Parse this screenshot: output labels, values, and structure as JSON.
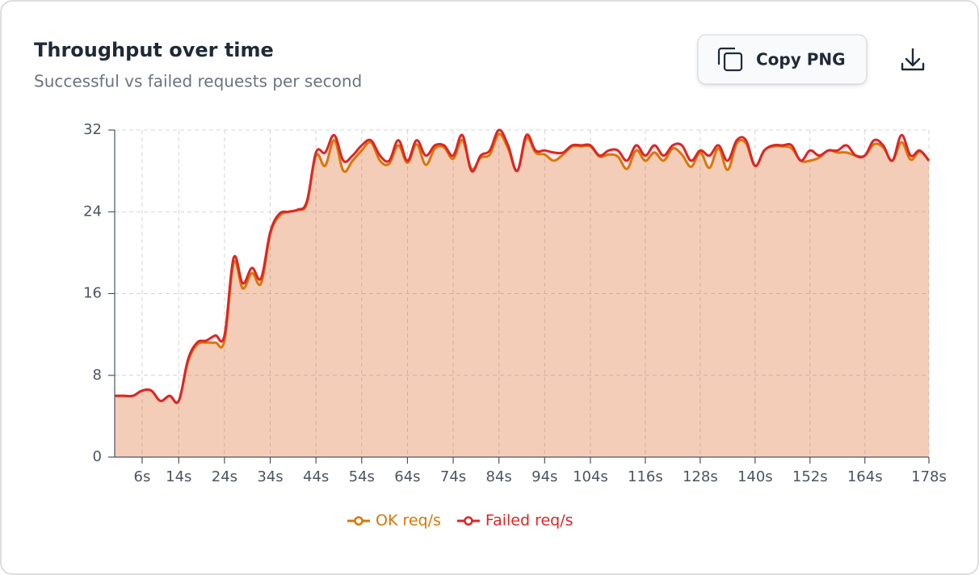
{
  "header": {
    "title": "Throughput over time",
    "subtitle": "Successful vs failed requests per second"
  },
  "toolbar": {
    "copy_label": "Copy PNG"
  },
  "chart_data": {
    "type": "line",
    "x": [
      0,
      2,
      4,
      6,
      8,
      10,
      12,
      14,
      16,
      18,
      20,
      22,
      24,
      26,
      28,
      30,
      32,
      34,
      36,
      38,
      40,
      42,
      44,
      46,
      48,
      50,
      52,
      54,
      56,
      58,
      60,
      62,
      64,
      66,
      68,
      70,
      72,
      74,
      76,
      78,
      80,
      82,
      84,
      86,
      88,
      90,
      92,
      94,
      96,
      98,
      100,
      102,
      104,
      106,
      108,
      110,
      112,
      114,
      116,
      118,
      120,
      122,
      124,
      126,
      128,
      130,
      132,
      134,
      136,
      138,
      140,
      142,
      144,
      146,
      148,
      150,
      152,
      154,
      156,
      158,
      160,
      162,
      164,
      166,
      168,
      170,
      172,
      174,
      176,
      178
    ],
    "series": [
      {
        "name": "OK req/s",
        "color": "#d97706",
        "values": [
          6,
          6,
          6,
          6.5,
          6.5,
          5.5,
          6,
          5.5,
          9.3,
          11,
          11.2,
          11.2,
          11.4,
          19,
          16.5,
          18,
          17,
          21.8,
          23.6,
          24,
          24.2,
          24.8,
          29.5,
          28.5,
          31,
          28,
          29,
          30,
          30.8,
          29,
          28.7,
          30.5,
          28.8,
          30.6,
          28.6,
          30.2,
          30.3,
          29.2,
          31,
          28.2,
          29.3,
          29.6,
          31.6,
          30.2,
          28,
          31.2,
          29.8,
          29.6,
          29,
          29.6,
          30.4,
          30.4,
          30.4,
          29.4,
          29.6,
          29.4,
          28.2,
          30,
          29,
          29.8,
          29,
          30.2,
          29.6,
          28.4,
          29.8,
          28.3,
          30.2,
          28.1,
          30.7,
          30.7,
          28.5,
          30,
          30.4,
          30.4,
          30.2,
          29,
          29,
          29.3,
          30,
          29.8,
          29.8,
          29.5,
          29.5,
          30.6,
          30.3,
          29,
          30.8,
          29.1,
          29.9,
          29
        ]
      },
      {
        "name": "Failed req/s",
        "color": "#dc2626",
        "values": [
          6,
          6,
          6,
          6.5,
          6.5,
          5.5,
          6,
          5.5,
          9.5,
          11.2,
          11.4,
          11.9,
          11.9,
          19.5,
          17,
          18.5,
          17.5,
          22,
          23.8,
          24,
          24.2,
          25,
          29.8,
          29.8,
          31.5,
          29,
          29.5,
          30.5,
          31,
          29.5,
          29,
          31,
          29,
          31,
          29.5,
          30.5,
          30.5,
          29.5,
          31.5,
          28,
          29.5,
          30,
          32,
          30.5,
          28,
          31.5,
          30,
          30,
          29.8,
          29.8,
          30.5,
          30.5,
          30.5,
          29.5,
          30,
          30,
          29,
          30.5,
          29.5,
          30.5,
          29.5,
          30.5,
          30.5,
          29,
          30,
          29.5,
          30.5,
          29,
          31,
          31,
          28.5,
          30,
          30.5,
          30.5,
          30.5,
          29,
          30,
          29.5,
          30,
          30,
          30.5,
          29.5,
          29.5,
          31,
          30.5,
          29,
          31.5,
          29.5,
          30,
          29
        ]
      }
    ],
    "xlim": [
      0,
      178
    ],
    "xticks": [
      {
        "value": 6,
        "label": "6s"
      },
      {
        "value": 14,
        "label": "14s"
      },
      {
        "value": 24,
        "label": "24s"
      },
      {
        "value": 34,
        "label": "34s"
      },
      {
        "value": 44,
        "label": "44s"
      },
      {
        "value": 54,
        "label": "54s"
      },
      {
        "value": 64,
        "label": "64s"
      },
      {
        "value": 74,
        "label": "74s"
      },
      {
        "value": 84,
        "label": "84s"
      },
      {
        "value": 94,
        "label": "94s"
      },
      {
        "value": 104,
        "label": "104s"
      },
      {
        "value": 116,
        "label": "116s"
      },
      {
        "value": 128,
        "label": "128s"
      },
      {
        "value": 140,
        "label": "140s"
      },
      {
        "value": 152,
        "label": "152s"
      },
      {
        "value": 164,
        "label": "164s"
      },
      {
        "value": 178,
        "label": "178s"
      }
    ],
    "ylim": [
      0,
      32
    ],
    "yticks": [
      0,
      8,
      16,
      24,
      32
    ],
    "grid": true
  }
}
